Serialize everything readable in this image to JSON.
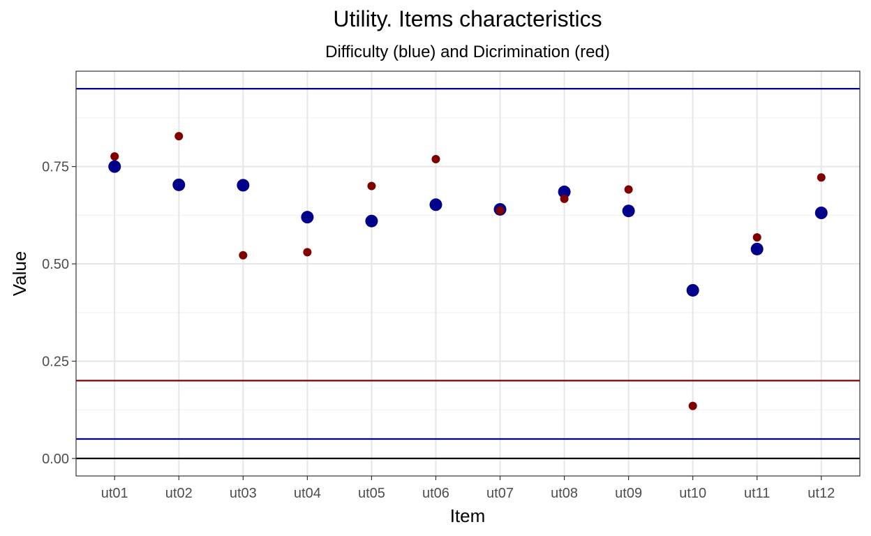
{
  "chart_data": {
    "type": "scatter",
    "title": "Utility. Items characteristics",
    "subtitle": "Difficulty (blue) and Dicrimination (red)",
    "xlabel": "Item",
    "ylabel": "Value",
    "categories": [
      "ut01",
      "ut02",
      "ut03",
      "ut04",
      "ut05",
      "ut06",
      "ut07",
      "ut08",
      "ut09",
      "ut10",
      "ut11",
      "ut12"
    ],
    "ylim": [
      -0.045,
      0.995
    ],
    "yticks": [
      0.0,
      0.25,
      0.5,
      0.75
    ],
    "ytick_labels": [
      "0.00",
      "0.25",
      "0.50",
      "0.75"
    ],
    "grid": true,
    "series": [
      {
        "color": "#00008b",
        "marker_size": "large",
        "values": [
          0.75,
          0.703,
          0.702,
          0.62,
          0.61,
          0.652,
          0.64,
          0.685,
          0.636,
          0.432,
          0.538,
          0.631
        ]
      },
      {
        "color": "#800000",
        "marker_size": "small",
        "values": [
          0.776,
          0.828,
          0.522,
          0.53,
          0.7,
          0.769,
          0.637,
          0.667,
          0.691,
          0.135,
          0.568,
          0.722
        ]
      }
    ],
    "reference_lines": [
      {
        "y": 0.95,
        "color": "#00008b"
      },
      {
        "y": 0.05,
        "color": "#00008b"
      },
      {
        "y": 0.2,
        "color": "#800000"
      },
      {
        "y": 0.0,
        "color": "#000000"
      }
    ]
  }
}
